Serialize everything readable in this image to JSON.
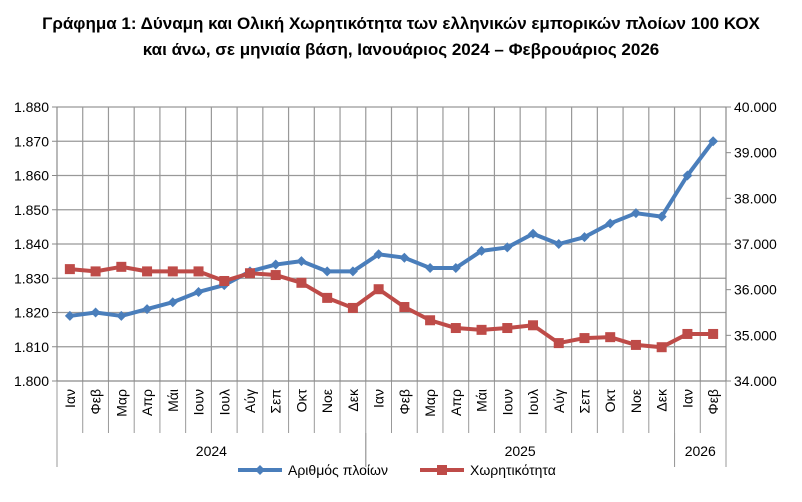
{
  "chart_data": {
    "type": "line",
    "title": [
      "Γράφημα 1: Δύναμη και Ολική Χωρητικότητα των ελληνικών εμπορικών πλοίων 100 ΚΟΧ",
      "και άνω, σε μηνιαία βάση, Ιανουάριος 2024 – Φεβρουάριος 2026"
    ],
    "categories": [
      "Ιαν",
      "Φεβ",
      "Μαρ",
      "Απρ",
      "Μάι",
      "Ιουν",
      "Ιουλ",
      "Αύγ",
      "Σεπ",
      "Οκτ",
      "Νοε",
      "Δεκ",
      "Ιαν",
      "Φεβ",
      "Μαρ",
      "Απρ",
      "Μάι",
      "Ιουν",
      "Ιουλ",
      "Αύγ",
      "Σεπ",
      "Οκτ",
      "Νοε",
      "Δεκ",
      "Ιαν",
      "Φεβ"
    ],
    "year_groups": [
      {
        "label": "2024",
        "count": 12
      },
      {
        "label": "2025",
        "count": 12
      },
      {
        "label": "2026",
        "count": 2
      }
    ],
    "left_axis": {
      "min": 1800,
      "max": 1880,
      "step": 10,
      "ticks": [
        "1.800",
        "1.810",
        "1.820",
        "1.830",
        "1.840",
        "1.850",
        "1.860",
        "1.870",
        "1.880"
      ]
    },
    "right_axis": {
      "min": 34000,
      "max": 40000,
      "step": 1000,
      "ticks": [
        "34.000",
        "35.000",
        "36.000",
        "37.000",
        "38.000",
        "39.000",
        "40.000"
      ]
    },
    "grid": true,
    "legend_position": "bottom",
    "series": [
      {
        "name": "Αριθμός πλοίων",
        "axis": "left",
        "color": "#4a7ebb",
        "marker": "diamond",
        "values": [
          1819,
          1820,
          1819,
          1821,
          1823,
          1826,
          1828,
          1832,
          1834,
          1835,
          1832,
          1832,
          1837,
          1836,
          1833,
          1833,
          1838,
          1839,
          1843,
          1840,
          1842,
          1846,
          1849,
          1848,
          1860,
          1870
        ]
      },
      {
        "name": "Χωρητικότητα",
        "axis": "right",
        "color": "#be4b48",
        "marker": "square",
        "values": [
          36450,
          36400,
          36500,
          36400,
          36400,
          36400,
          36190,
          36360,
          36320,
          36150,
          35820,
          35600,
          36010,
          35620,
          35330,
          35160,
          35120,
          35160,
          35220,
          34830,
          34940,
          34960,
          34790,
          34740,
          35030,
          35030
        ]
      }
    ]
  }
}
